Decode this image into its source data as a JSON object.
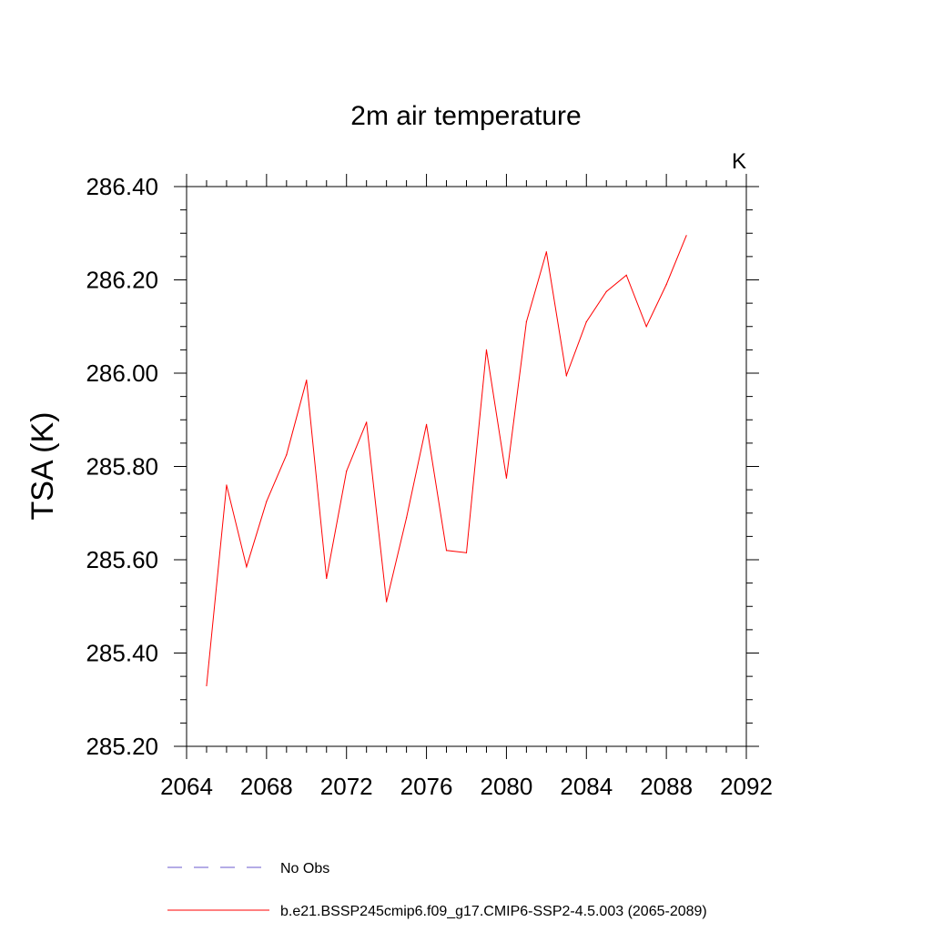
{
  "chart_data": {
    "type": "line",
    "title": "2m air temperature",
    "units_label": "K",
    "ylabel": "TSA  (K)",
    "xlabel": "",
    "xlim": [
      2064,
      2092
    ],
    "ylim": [
      285.2,
      286.4
    ],
    "x_ticks": [
      "2064",
      "2068",
      "2072",
      "2076",
      "2080",
      "2084",
      "2088",
      "2092"
    ],
    "y_ticks": [
      "285.20",
      "285.40",
      "285.60",
      "285.80",
      "286.00",
      "286.20",
      "286.40"
    ],
    "legend_placement": "bottom",
    "series": [
      {
        "name": "b.e21.BSSP245cmip6.f09_g17.CMIP6-SSP2-4.5.003 (2065-2089)",
        "color": "#ff0000",
        "style": "solid",
        "x": [
          2065,
          2066,
          2067,
          2068,
          2069,
          2070,
          2071,
          2072,
          2073,
          2074,
          2075,
          2076,
          2077,
          2078,
          2079,
          2080,
          2081,
          2082,
          2083,
          2084,
          2085,
          2086,
          2087,
          2088,
          2089
        ],
        "y": [
          285.33,
          285.76,
          285.585,
          285.725,
          285.825,
          285.985,
          285.56,
          285.79,
          285.895,
          285.51,
          285.69,
          285.89,
          285.62,
          285.615,
          286.05,
          285.775,
          286.11,
          286.26,
          285.995,
          286.11,
          286.175,
          286.21,
          286.1,
          286.19,
          286.295
        ]
      }
    ],
    "legend": [
      {
        "label": "No Obs",
        "color": "#6a5acd",
        "style": "dashed"
      },
      {
        "label": "b.e21.BSSP245cmip6.f09_g17.CMIP6-SSP2-4.5.003 (2065-2089)",
        "color": "#ff0000",
        "style": "solid"
      }
    ]
  }
}
